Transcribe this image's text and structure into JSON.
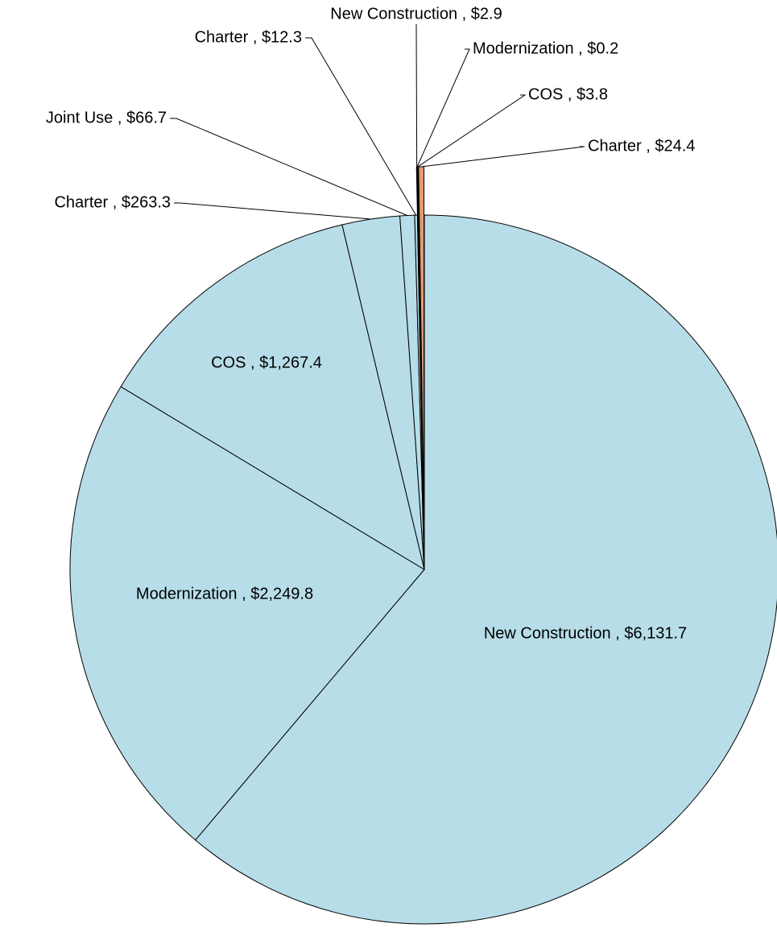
{
  "chart_data": {
    "type": "pie",
    "values": [
      6131.7,
      2249.8,
      1267.4,
      263.3,
      66.7,
      12.3,
      2.9,
      0.2,
      3.8,
      24.4
    ],
    "value_labels": [
      "New Construction , $6,131.7",
      "Modernization , $2,249.8",
      "COS , $1,267.4",
      "Charter , $263.3",
      "Joint Use , $66.7",
      "Charter , $12.3",
      "New Construction , $2.9",
      "Modernization , $0.2",
      "COS , $3.8",
      "Charter , $24.4"
    ],
    "colors": [
      "#b7dde8",
      "#b7dde8",
      "#b7dde8",
      "#b7dde8",
      "#b7dde8",
      "#b7dde8",
      "#9bbb59",
      "#8064a2",
      "#4bacc6",
      "#e39a6f"
    ]
  }
}
